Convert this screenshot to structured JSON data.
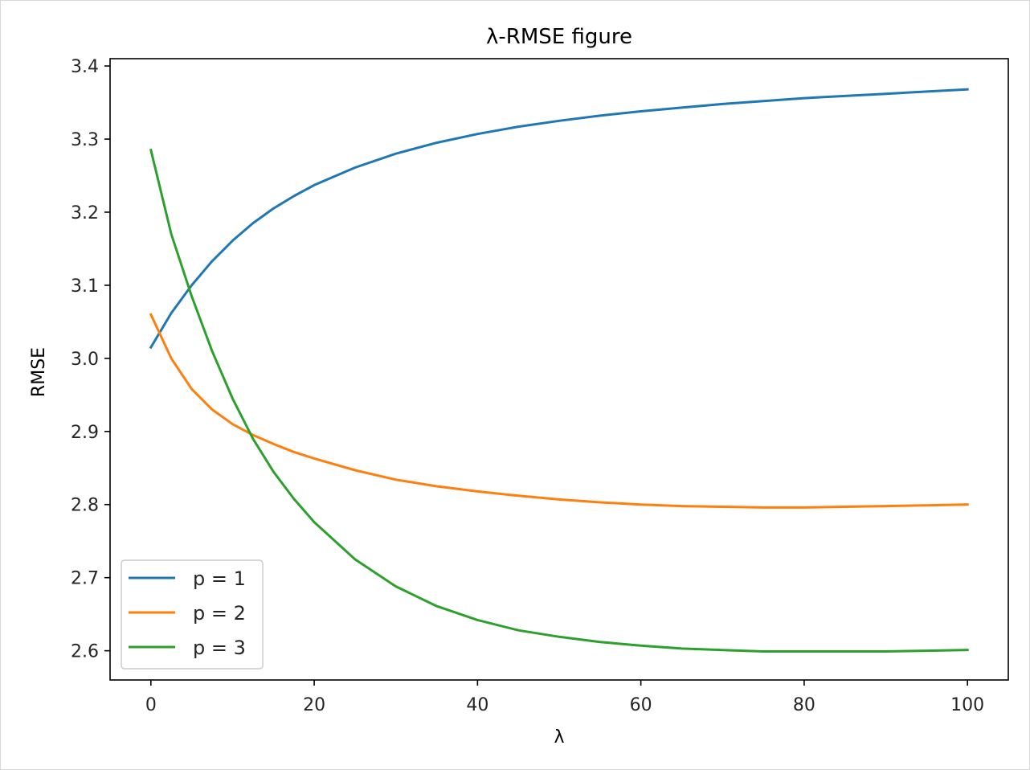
{
  "chart_data": {
    "type": "line",
    "title": "λ-RMSE figure",
    "xlabel": "λ",
    "ylabel": "RMSE",
    "xlim": [
      -5,
      105
    ],
    "ylim": [
      2.56,
      3.41
    ],
    "xticks": [
      0,
      20,
      40,
      60,
      80,
      100
    ],
    "xtick_labels": [
      "0",
      "20",
      "40",
      "60",
      "80",
      "100"
    ],
    "yticks": [
      2.6,
      2.7,
      2.8,
      2.9,
      3.0,
      3.1,
      3.2,
      3.3,
      3.4
    ],
    "ytick_labels": [
      "2.6",
      "2.7",
      "2.8",
      "2.9",
      "3.0",
      "3.1",
      "3.2",
      "3.3",
      "3.4"
    ],
    "grid": false,
    "legend_position": "lower-left",
    "x": [
      0,
      2.5,
      5,
      7.5,
      10,
      12.5,
      15,
      17.5,
      20,
      25,
      30,
      35,
      40,
      45,
      50,
      55,
      60,
      65,
      70,
      75,
      80,
      85,
      90,
      95,
      100
    ],
    "series": [
      {
        "name": "p = 1",
        "color": "#1f77b4",
        "values": [
          3.015,
          3.062,
          3.1,
          3.133,
          3.161,
          3.185,
          3.205,
          3.222,
          3.237,
          3.261,
          3.28,
          3.295,
          3.307,
          3.317,
          3.325,
          3.332,
          3.338,
          3.343,
          3.348,
          3.352,
          3.356,
          3.359,
          3.362,
          3.365,
          3.368
        ]
      },
      {
        "name": "p = 2",
        "color": "#ff7f0e",
        "values": [
          3.06,
          3.0,
          2.958,
          2.93,
          2.91,
          2.895,
          2.883,
          2.872,
          2.863,
          2.847,
          2.834,
          2.825,
          2.818,
          2.812,
          2.807,
          2.803,
          2.8,
          2.798,
          2.797,
          2.796,
          2.796,
          2.797,
          2.798,
          2.799,
          2.8
        ]
      },
      {
        "name": "p = 3",
        "color": "#2ca02c",
        "values": [
          3.285,
          3.17,
          3.085,
          3.01,
          2.945,
          2.89,
          2.845,
          2.808,
          2.776,
          2.725,
          2.688,
          2.661,
          2.642,
          2.628,
          2.619,
          2.612,
          2.607,
          2.603,
          2.601,
          2.599,
          2.599,
          2.599,
          2.599,
          2.6,
          2.601
        ]
      }
    ]
  }
}
